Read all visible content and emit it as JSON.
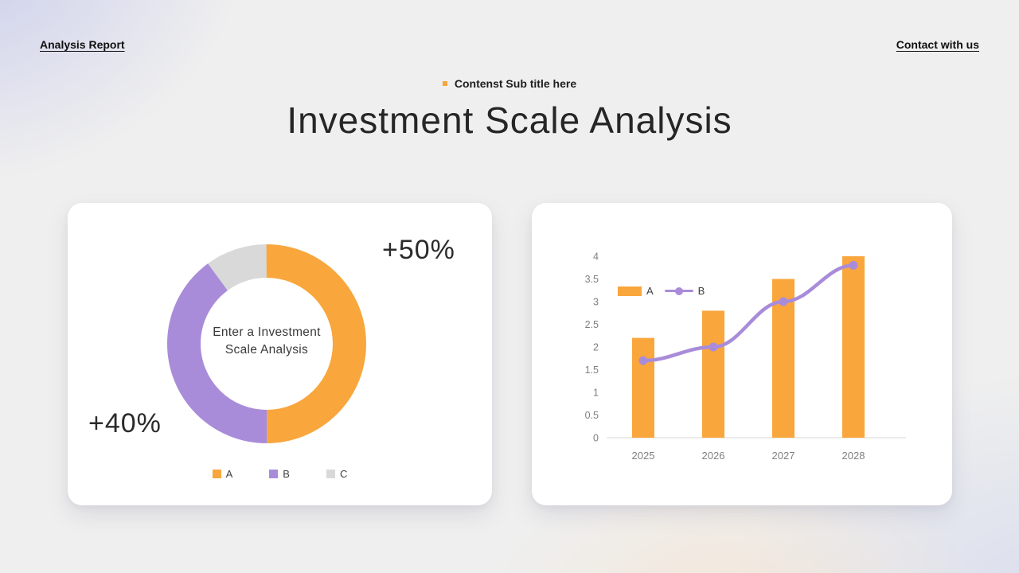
{
  "header": {
    "left_link": "Analysis Report",
    "right_link": "Contact with us",
    "subtitle": "Contenst Sub title here",
    "title": "Investment Scale Analysis"
  },
  "colors": {
    "accent_orange": "#F9A63D",
    "accent_purple": "#A98CD9",
    "accent_gray": "#D9D9D9",
    "axis_text": "#7F7F7F",
    "axis_line": "#D9D9D9",
    "legend_text": "#404040"
  },
  "chart_data": [
    {
      "type": "pie",
      "donut": true,
      "legend_position": "bottom",
      "center_text_lines": [
        "Enter a Investment",
        "Scale Analysis"
      ],
      "slices": [
        {
          "name": "A",
          "value": 50,
          "color": "#F9A63D",
          "callout": "+50%"
        },
        {
          "name": "B",
          "value": 40,
          "color": "#A98CD9",
          "callout": "+40%"
        },
        {
          "name": "C",
          "value": 10,
          "color": "#D9D9D9",
          "callout": ""
        }
      ]
    },
    {
      "type": "bar",
      "categories": [
        "2025",
        "2026",
        "2027",
        "2028"
      ],
      "series": [
        {
          "name": "A",
          "type": "bar",
          "color": "#F9A63D",
          "values": [
            2.2,
            2.8,
            3.5,
            4
          ]
        },
        {
          "name": "B",
          "type": "line",
          "color": "#A98CD9",
          "values": [
            1.7,
            2,
            3,
            3.8
          ]
        }
      ],
      "ylim": [
        0,
        4
      ],
      "ytick_step": 0.5,
      "grid": false,
      "legend_position": "inside-top-left"
    }
  ]
}
